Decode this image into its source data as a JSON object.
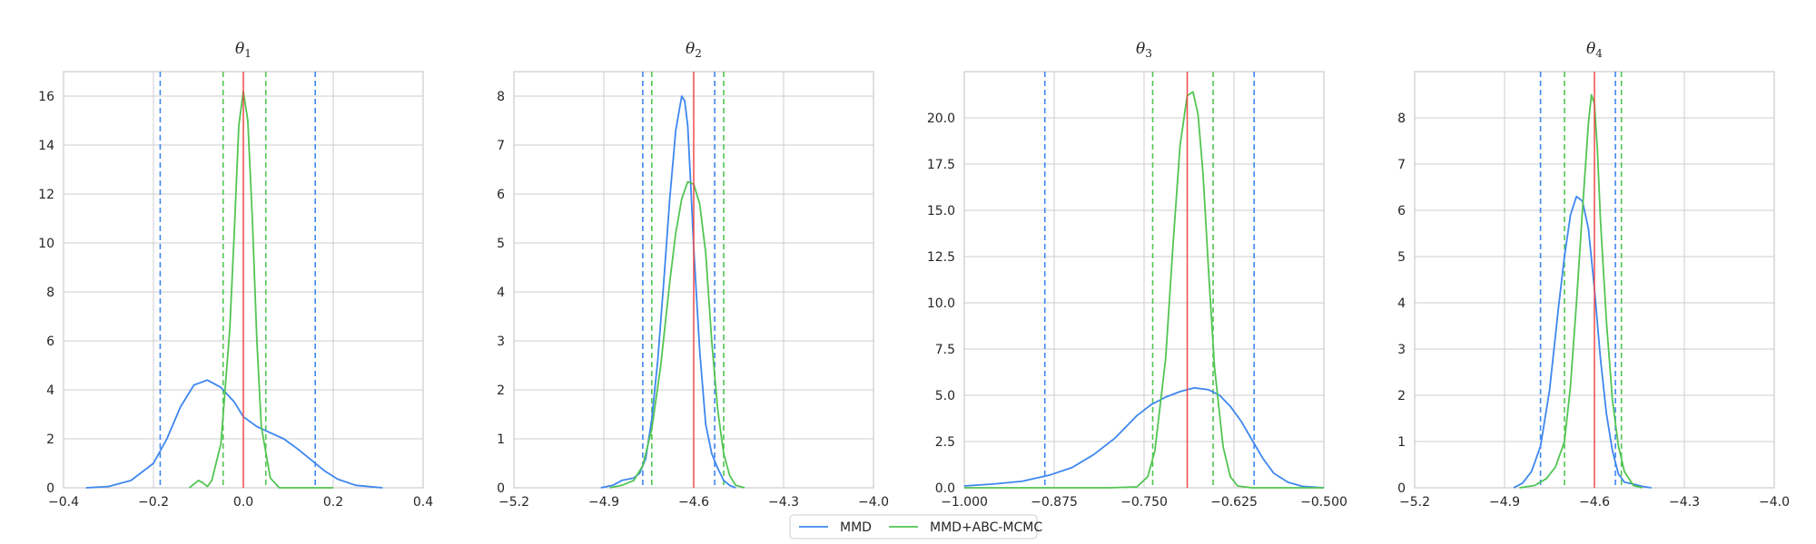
{
  "colors": {
    "mmd": "#3e87f0",
    "mmd_abc": "#52c552",
    "truth": "#f04a4a",
    "grid": "#cccccc",
    "frame": "#cccccc"
  },
  "legend": {
    "placement": "bottom-center",
    "items": [
      {
        "label": "MMD",
        "color": "#3e87f0"
      },
      {
        "label": "MMD+ABC-MCMC",
        "color": "#52c552"
      }
    ]
  },
  "chart_data": [
    {
      "type": "line",
      "title_symbol": "θ",
      "title_sub": "1",
      "xlim": [
        -0.4,
        0.4
      ],
      "ylim": [
        0,
        17
      ],
      "xticks": [
        -0.4,
        -0.2,
        0.0,
        0.2,
        0.4
      ],
      "xtick_labels": [
        "−0.4",
        "−0.2",
        "0.0",
        "0.2",
        "0.4"
      ],
      "yticks": [
        0,
        2,
        4,
        6,
        8,
        10,
        12,
        14,
        16
      ],
      "ytick_labels": [
        "0",
        "2",
        "4",
        "6",
        "8",
        "10",
        "12",
        "14",
        "16"
      ],
      "grid": true,
      "true_value": 0.0,
      "series": [
        {
          "name": "MMD",
          "interval": [
            -0.185,
            0.16
          ],
          "x": [
            -0.35,
            -0.3,
            -0.25,
            -0.2,
            -0.17,
            -0.14,
            -0.11,
            -0.08,
            -0.05,
            -0.02,
            0.0,
            0.03,
            0.06,
            0.09,
            0.12,
            0.15,
            0.18,
            0.21,
            0.25,
            0.31
          ],
          "y": [
            0.0,
            0.05,
            0.3,
            1.0,
            2.0,
            3.3,
            4.2,
            4.4,
            4.1,
            3.5,
            2.9,
            2.5,
            2.25,
            2.0,
            1.6,
            1.15,
            0.7,
            0.35,
            0.1,
            0.0
          ]
        },
        {
          "name": "MMD+ABC-MCMC",
          "interval": [
            -0.045,
            0.05
          ],
          "x": [
            -0.12,
            -0.1,
            -0.09,
            -0.08,
            -0.07,
            -0.05,
            -0.03,
            -0.02,
            -0.01,
            0.0,
            0.01,
            0.02,
            0.03,
            0.04,
            0.06,
            0.08,
            0.1,
            0.2
          ],
          "y": [
            0.0,
            0.3,
            0.2,
            0.05,
            0.3,
            1.8,
            6.5,
            10.5,
            14.8,
            16.2,
            15.0,
            11.0,
            6.0,
            2.5,
            0.4,
            0.0,
            0.0,
            0.0
          ]
        }
      ]
    },
    {
      "type": "line",
      "title_symbol": "θ",
      "title_sub": "2",
      "xlim": [
        -5.2,
        -4.0
      ],
      "ylim": [
        0,
        8.5
      ],
      "xticks": [
        -5.2,
        -4.9,
        -4.6,
        -4.3,
        -4.0
      ],
      "xtick_labels": [
        "−5.2",
        "−4.9",
        "−4.6",
        "−4.3",
        "−4.0"
      ],
      "yticks": [
        0,
        1,
        2,
        3,
        4,
        5,
        6,
        7,
        8
      ],
      "ytick_labels": [
        "0",
        "1",
        "2",
        "3",
        "4",
        "5",
        "6",
        "7",
        "8"
      ],
      "grid": true,
      "true_value": -4.6,
      "series": [
        {
          "name": "MMD",
          "interval": [
            -4.77,
            -4.53
          ],
          "x": [
            -4.91,
            -4.87,
            -4.84,
            -4.8,
            -4.78,
            -4.76,
            -4.74,
            -4.72,
            -4.7,
            -4.68,
            -4.66,
            -4.64,
            -4.63,
            -4.62,
            -4.61,
            -4.6,
            -4.58,
            -4.56,
            -4.54,
            -4.52,
            -4.5,
            -4.48,
            -4.46
          ],
          "y": [
            0.0,
            0.05,
            0.15,
            0.2,
            0.3,
            0.6,
            1.4,
            2.6,
            4.2,
            5.9,
            7.3,
            8.0,
            7.9,
            7.4,
            6.2,
            4.9,
            2.8,
            1.3,
            0.7,
            0.4,
            0.15,
            0.05,
            0.0
          ]
        },
        {
          "name": "MMD+ABC-MCMC",
          "interval": [
            -4.74,
            -4.5
          ],
          "x": [
            -4.88,
            -4.84,
            -4.8,
            -4.77,
            -4.74,
            -4.71,
            -4.68,
            -4.66,
            -4.64,
            -4.62,
            -4.6,
            -4.58,
            -4.56,
            -4.54,
            -4.52,
            -4.5,
            -4.48,
            -4.46,
            -4.43
          ],
          "y": [
            0.0,
            0.05,
            0.15,
            0.45,
            1.2,
            2.5,
            4.2,
            5.2,
            5.9,
            6.25,
            6.2,
            5.8,
            4.8,
            3.0,
            1.6,
            0.7,
            0.25,
            0.05,
            0.0
          ]
        }
      ]
    },
    {
      "type": "line",
      "title_symbol": "θ",
      "title_sub": "3",
      "xlim": [
        -1.0,
        -0.5
      ],
      "ylim": [
        0,
        22.5
      ],
      "xticks": [
        -1.0,
        -0.875,
        -0.75,
        -0.625,
        -0.5
      ],
      "xtick_labels": [
        "−1.000",
        "−0.875",
        "−0.750",
        "−0.625",
        "−0.500"
      ],
      "yticks": [
        0,
        2.5,
        5,
        7.5,
        10,
        12.5,
        15,
        17.5,
        20
      ],
      "ytick_labels": [
        "0.0",
        "2.5",
        "5.0",
        "7.5",
        "10.0",
        "12.5",
        "15.0",
        "17.5",
        "20.0"
      ],
      "grid": true,
      "true_value": -0.69,
      "series": [
        {
          "name": "MMD",
          "interval": [
            -0.888,
            -0.597
          ],
          "x": [
            -1.0,
            -0.96,
            -0.92,
            -0.88,
            -0.85,
            -0.82,
            -0.79,
            -0.76,
            -0.74,
            -0.72,
            -0.7,
            -0.68,
            -0.66,
            -0.645,
            -0.63,
            -0.615,
            -0.6,
            -0.585,
            -0.57,
            -0.55,
            -0.53,
            -0.5
          ],
          "y": [
            0.1,
            0.2,
            0.35,
            0.7,
            1.1,
            1.8,
            2.7,
            3.9,
            4.5,
            4.9,
            5.2,
            5.4,
            5.3,
            5.0,
            4.4,
            3.6,
            2.6,
            1.6,
            0.8,
            0.3,
            0.08,
            0.0
          ]
        },
        {
          "name": "MMD+ABC-MCMC",
          "interval": [
            -0.738,
            -0.654
          ],
          "x": [
            -1.0,
            -0.8,
            -0.76,
            -0.745,
            -0.735,
            -0.72,
            -0.71,
            -0.7,
            -0.69,
            -0.682,
            -0.675,
            -0.668,
            -0.66,
            -0.652,
            -0.64,
            -0.63,
            -0.62,
            -0.6,
            -0.5
          ],
          "y": [
            0.0,
            0.0,
            0.05,
            0.6,
            2.0,
            7.0,
            13.0,
            18.5,
            21.2,
            21.4,
            20.2,
            17.0,
            11.5,
            6.5,
            2.2,
            0.6,
            0.1,
            0.0,
            0.0
          ]
        }
      ]
    },
    {
      "type": "line",
      "title_symbol": "θ",
      "title_sub": "4",
      "xlim": [
        -5.2,
        -4.0
      ],
      "ylim": [
        0,
        9
      ],
      "xticks": [
        -5.2,
        -4.9,
        -4.6,
        -4.3,
        -4.0
      ],
      "xtick_labels": [
        "−5.2",
        "−4.9",
        "−4.6",
        "−4.3",
        "−4.0"
      ],
      "yticks": [
        0,
        1,
        2,
        3,
        4,
        5,
        6,
        7,
        8
      ],
      "ytick_labels": [
        "0",
        "1",
        "2",
        "3",
        "4",
        "5",
        "6",
        "7",
        "8"
      ],
      "grid": true,
      "true_value": -4.6,
      "series": [
        {
          "name": "MMD",
          "interval": [
            -4.78,
            -4.53
          ],
          "x": [
            -4.87,
            -4.84,
            -4.81,
            -4.78,
            -4.75,
            -4.72,
            -4.7,
            -4.68,
            -4.66,
            -4.64,
            -4.62,
            -4.6,
            -4.58,
            -4.56,
            -4.54,
            -4.52,
            -4.5,
            -4.47,
            -4.44,
            -4.41
          ],
          "y": [
            0.0,
            0.1,
            0.35,
            0.9,
            2.1,
            3.9,
            5.0,
            5.9,
            6.3,
            6.2,
            5.6,
            4.3,
            2.8,
            1.6,
            0.8,
            0.3,
            0.12,
            0.08,
            0.03,
            0.0
          ]
        },
        {
          "name": "MMD+ABC-MCMC",
          "interval": [
            -4.7,
            -4.51
          ],
          "x": [
            -4.85,
            -4.8,
            -4.76,
            -4.73,
            -4.7,
            -4.68,
            -4.66,
            -4.64,
            -4.62,
            -4.61,
            -4.6,
            -4.59,
            -4.58,
            -4.56,
            -4.54,
            -4.52,
            -4.5,
            -4.47,
            -4.44
          ],
          "y": [
            0.0,
            0.05,
            0.2,
            0.45,
            1.0,
            2.2,
            4.0,
            6.0,
            7.9,
            8.5,
            8.3,
            7.3,
            5.8,
            3.6,
            1.9,
            0.9,
            0.35,
            0.05,
            0.0
          ]
        }
      ]
    }
  ]
}
